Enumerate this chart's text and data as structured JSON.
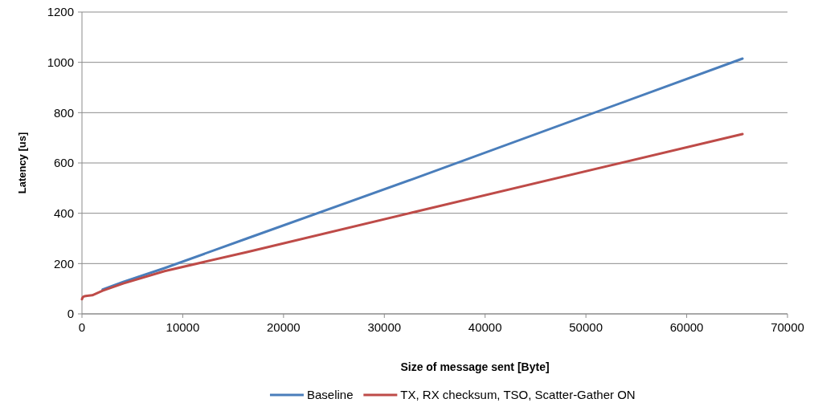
{
  "chart_data": {
    "type": "line",
    "xlabel": "Size of message sent [Byte]",
    "ylabel": "Latency [us]",
    "x": [
      1,
      64,
      128,
      256,
      512,
      1024,
      2048,
      4096,
      8192,
      16384,
      32768,
      65536
    ],
    "series": [
      {
        "name": "Baseline",
        "color": "#4a7ebb",
        "x": [
          2048,
          4096,
          8192,
          16384,
          32768,
          65536
        ],
        "values": [
          97,
          127,
          182,
          300,
          535,
          1015
        ]
      },
      {
        "name": "TX, RX checksum, TSO, Scatter-Gather ON",
        "color": "#be4b48",
        "values": [
          58,
          65,
          68,
          70,
          72,
          74,
          92,
          121,
          170,
          246,
          403,
          715
        ]
      }
    ],
    "xlim": [
      0,
      70000
    ],
    "xticks": [
      0,
      10000,
      20000,
      30000,
      40000,
      50000,
      60000,
      70000
    ],
    "ylim": [
      0,
      1200
    ],
    "yticks": [
      0,
      200,
      400,
      600,
      800,
      1000,
      1200
    ],
    "grid": "y",
    "legend": "bottom",
    "marker": "none"
  }
}
